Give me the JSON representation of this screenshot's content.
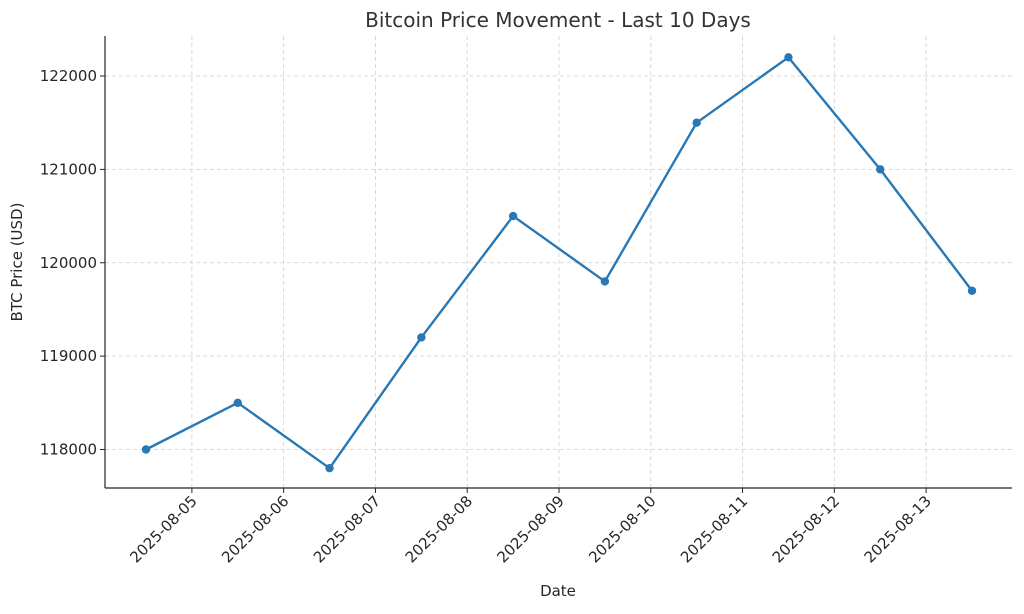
{
  "chart_data": {
    "type": "line",
    "title": "Bitcoin Price Movement - Last 10 Days",
    "xlabel": "Date",
    "ylabel": "BTC Price (USD)",
    "x": [
      "2025-08-04",
      "2025-08-05",
      "2025-08-06",
      "2025-08-07",
      "2025-08-08",
      "2025-08-09",
      "2025-08-10",
      "2025-08-11",
      "2025-08-12",
      "2025-08-13"
    ],
    "x_tick_labels": [
      "2025-08-05",
      "2025-08-06",
      "2025-08-07",
      "2025-08-08",
      "2025-08-09",
      "2025-08-10",
      "2025-08-11",
      "2025-08-12",
      "2025-08-13"
    ],
    "y_tick_values": [
      118000,
      119000,
      120000,
      121000,
      122000
    ],
    "y_tick_labels": [
      "118000",
      "119000",
      "120000",
      "121000",
      "122000"
    ],
    "series": [
      {
        "values": [
          118000,
          118500,
          117800,
          119200,
          120500,
          119800,
          121500,
          122200,
          121000,
          119700
        ],
        "color": "#2878b5"
      }
    ],
    "ylim": [
      117600,
      122400
    ],
    "grid": true,
    "marker": "circle"
  }
}
